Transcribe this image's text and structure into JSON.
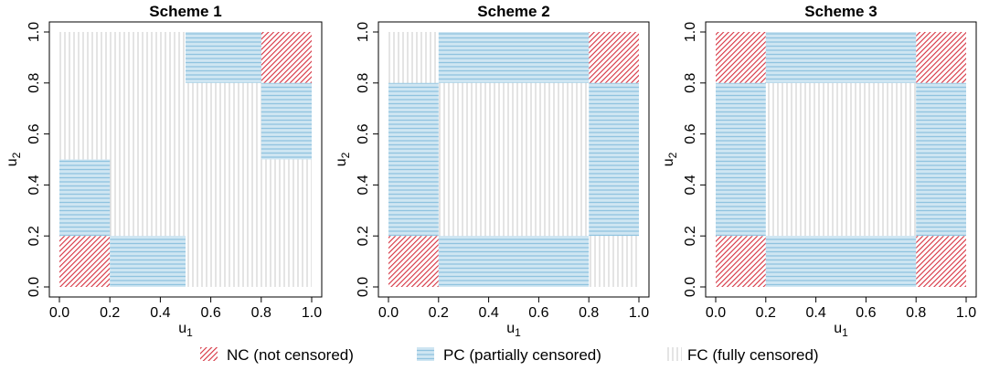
{
  "colors": {
    "nc_stroke": "#d6303e",
    "pc_fill": "#cfe6f2",
    "pc_stroke": "#8fc3df",
    "fc_stroke": "#c8c8c8"
  },
  "legend": [
    {
      "key": "NC",
      "label": "NC (not censored)",
      "pattern": "diagonal-hatch",
      "color": "#d6303e"
    },
    {
      "key": "PC",
      "label": "PC (partially censored)",
      "pattern": "horizontal-lines",
      "color": "#8fc3df"
    },
    {
      "key": "FC",
      "label": "FC (fully censored)",
      "pattern": "vertical-lines",
      "color": "#c8c8c8"
    }
  ],
  "chart_data": [
    {
      "type": "heatmap",
      "title": "Scheme 1",
      "xlabel": "u1",
      "ylabel": "u2",
      "xlim": [
        0,
        1
      ],
      "ylim": [
        0,
        1
      ],
      "xticks": [
        "0.0",
        "0.2",
        "0.4",
        "0.6",
        "0.8",
        "1.0"
      ],
      "yticks": [
        "0.0",
        "0.2",
        "0.4",
        "0.6",
        "0.8",
        "1.0"
      ],
      "regions": [
        {
          "type": "FC",
          "x": [
            0.0,
            1.0
          ],
          "y": [
            0.0,
            1.0
          ]
        },
        {
          "type": "NC",
          "x": [
            0.0,
            0.2
          ],
          "y": [
            0.0,
            0.2
          ]
        },
        {
          "type": "PC",
          "x": [
            0.2,
            0.5
          ],
          "y": [
            0.0,
            0.2
          ]
        },
        {
          "type": "PC",
          "x": [
            0.0,
            0.2
          ],
          "y": [
            0.2,
            0.5
          ]
        },
        {
          "type": "NC",
          "x": [
            0.8,
            1.0
          ],
          "y": [
            0.8,
            1.0
          ]
        },
        {
          "type": "PC",
          "x": [
            0.5,
            0.8
          ],
          "y": [
            0.8,
            1.0
          ]
        },
        {
          "type": "PC",
          "x": [
            0.8,
            1.0
          ],
          "y": [
            0.5,
            0.8
          ]
        }
      ]
    },
    {
      "type": "heatmap",
      "title": "Scheme 2",
      "xlabel": "u1",
      "ylabel": "u2",
      "xlim": [
        0,
        1
      ],
      "ylim": [
        0,
        1
      ],
      "xticks": [
        "0.0",
        "0.2",
        "0.4",
        "0.6",
        "0.8",
        "1.0"
      ],
      "yticks": [
        "0.0",
        "0.2",
        "0.4",
        "0.6",
        "0.8",
        "1.0"
      ],
      "regions": [
        {
          "type": "FC",
          "x": [
            0.0,
            1.0
          ],
          "y": [
            0.0,
            1.0
          ]
        },
        {
          "type": "NC",
          "x": [
            0.0,
            0.2
          ],
          "y": [
            0.0,
            0.2
          ]
        },
        {
          "type": "PC",
          "x": [
            0.2,
            0.8
          ],
          "y": [
            0.0,
            0.2
          ]
        },
        {
          "type": "PC",
          "x": [
            0.0,
            0.2
          ],
          "y": [
            0.2,
            0.8
          ]
        },
        {
          "type": "NC",
          "x": [
            0.8,
            1.0
          ],
          "y": [
            0.8,
            1.0
          ]
        },
        {
          "type": "PC",
          "x": [
            0.2,
            0.8
          ],
          "y": [
            0.8,
            1.0
          ]
        },
        {
          "type": "PC",
          "x": [
            0.8,
            1.0
          ],
          "y": [
            0.2,
            0.8
          ]
        }
      ]
    },
    {
      "type": "heatmap",
      "title": "Scheme 3",
      "xlabel": "u1",
      "ylabel": "u2",
      "xlim": [
        0,
        1
      ],
      "ylim": [
        0,
        1
      ],
      "xticks": [
        "0.0",
        "0.2",
        "0.4",
        "0.6",
        "0.8",
        "1.0"
      ],
      "yticks": [
        "0.0",
        "0.2",
        "0.4",
        "0.6",
        "0.8",
        "1.0"
      ],
      "regions": [
        {
          "type": "FC",
          "x": [
            0.2,
            0.8
          ],
          "y": [
            0.2,
            0.8
          ]
        },
        {
          "type": "NC",
          "x": [
            0.0,
            0.2
          ],
          "y": [
            0.0,
            0.2
          ]
        },
        {
          "type": "NC",
          "x": [
            0.8,
            1.0
          ],
          "y": [
            0.0,
            0.2
          ]
        },
        {
          "type": "NC",
          "x": [
            0.0,
            0.2
          ],
          "y": [
            0.8,
            1.0
          ]
        },
        {
          "type": "NC",
          "x": [
            0.8,
            1.0
          ],
          "y": [
            0.8,
            1.0
          ]
        },
        {
          "type": "PC",
          "x": [
            0.2,
            0.8
          ],
          "y": [
            0.0,
            0.2
          ]
        },
        {
          "type": "PC",
          "x": [
            0.2,
            0.8
          ],
          "y": [
            0.8,
            1.0
          ]
        },
        {
          "type": "PC",
          "x": [
            0.0,
            0.2
          ],
          "y": [
            0.2,
            0.8
          ]
        },
        {
          "type": "PC",
          "x": [
            0.8,
            1.0
          ],
          "y": [
            0.2,
            0.8
          ]
        }
      ]
    }
  ]
}
